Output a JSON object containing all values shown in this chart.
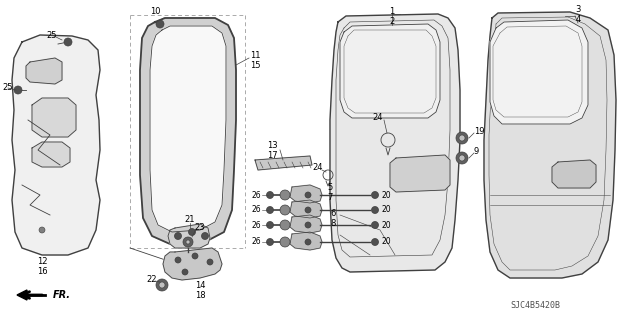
{
  "background_color": "#ffffff",
  "diagram_code": "SJC4B5420B",
  "line_color": "#404040",
  "thin_lw": 0.6,
  "main_lw": 1.0,
  "thick_lw": 1.5
}
